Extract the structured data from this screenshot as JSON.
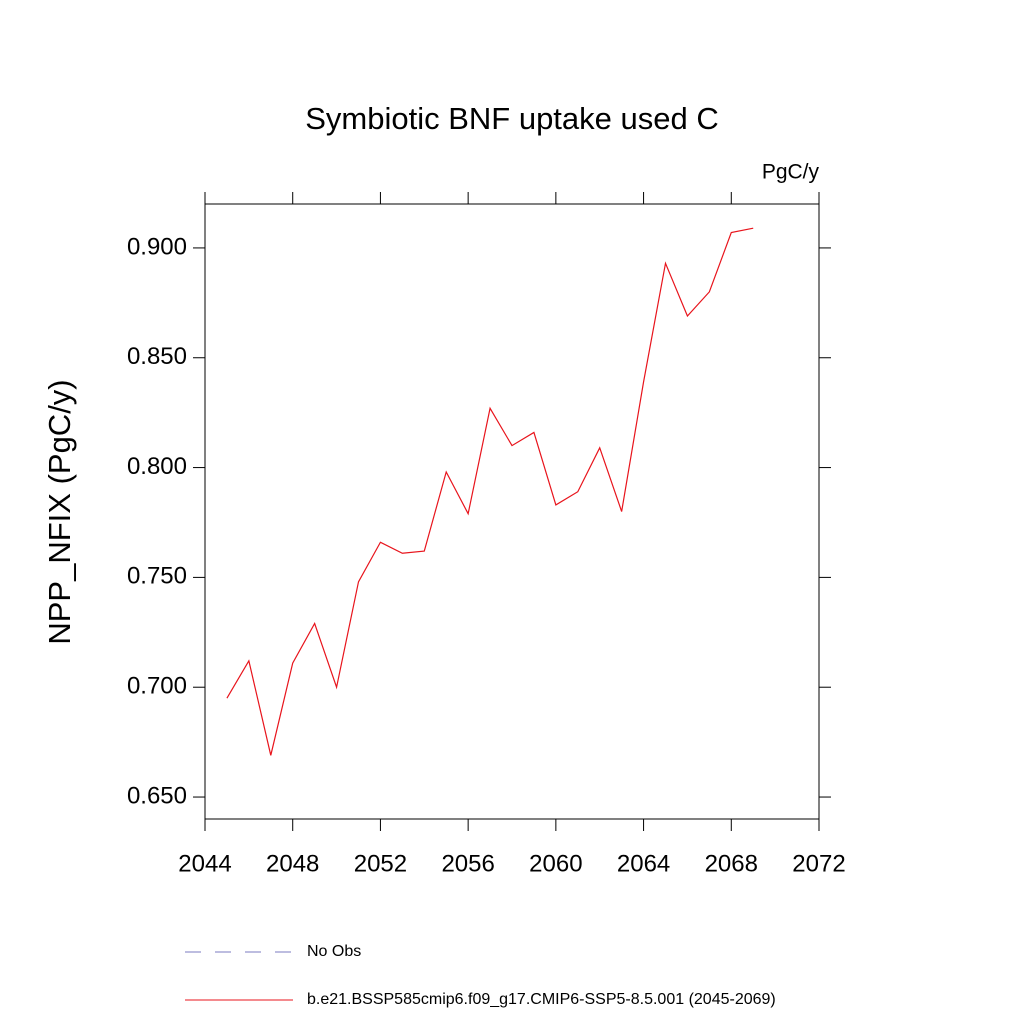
{
  "chart_data": {
    "type": "line",
    "title": "Symbiotic BNF uptake used C",
    "units": "PgC/y",
    "y_label": "NPP_NFIX  (PgC/y)",
    "x": [
      2045,
      2046,
      2047,
      2048,
      2049,
      2050,
      2051,
      2052,
      2053,
      2054,
      2055,
      2056,
      2057,
      2058,
      2059,
      2060,
      2061,
      2062,
      2063,
      2064,
      2065,
      2066,
      2067,
      2068,
      2069
    ],
    "series": [
      {
        "name": "b.e21.BSSP585cmip6.f09_g17.CMIP6-SSP5-8.5.001 (2045-2069)",
        "color": "#e8141c",
        "values": [
          0.695,
          0.712,
          0.669,
          0.711,
          0.729,
          0.7,
          0.748,
          0.766,
          0.761,
          0.762,
          0.798,
          0.779,
          0.827,
          0.81,
          0.816,
          0.783,
          0.789,
          0.809,
          0.78,
          0.839,
          0.893,
          0.869,
          0.88,
          0.907,
          0.909
        ]
      }
    ],
    "extra_legend": [
      {
        "name": "No Obs",
        "color": "#7b7bc0",
        "dash": "dashed"
      }
    ],
    "xlim": [
      2044,
      2072
    ],
    "xticks": [
      2044,
      2048,
      2052,
      2056,
      2060,
      2064,
      2068,
      2072
    ],
    "ylim": [
      0.64,
      0.92
    ],
    "yticks": [
      {
        "value": 0.65,
        "label": "0.650"
      },
      {
        "value": 0.7,
        "label": "0.700"
      },
      {
        "value": 0.75,
        "label": "0.750"
      },
      {
        "value": 0.8,
        "label": "0.800"
      },
      {
        "value": 0.85,
        "label": "0.850"
      },
      {
        "value": 0.9,
        "label": "0.900"
      }
    ]
  }
}
